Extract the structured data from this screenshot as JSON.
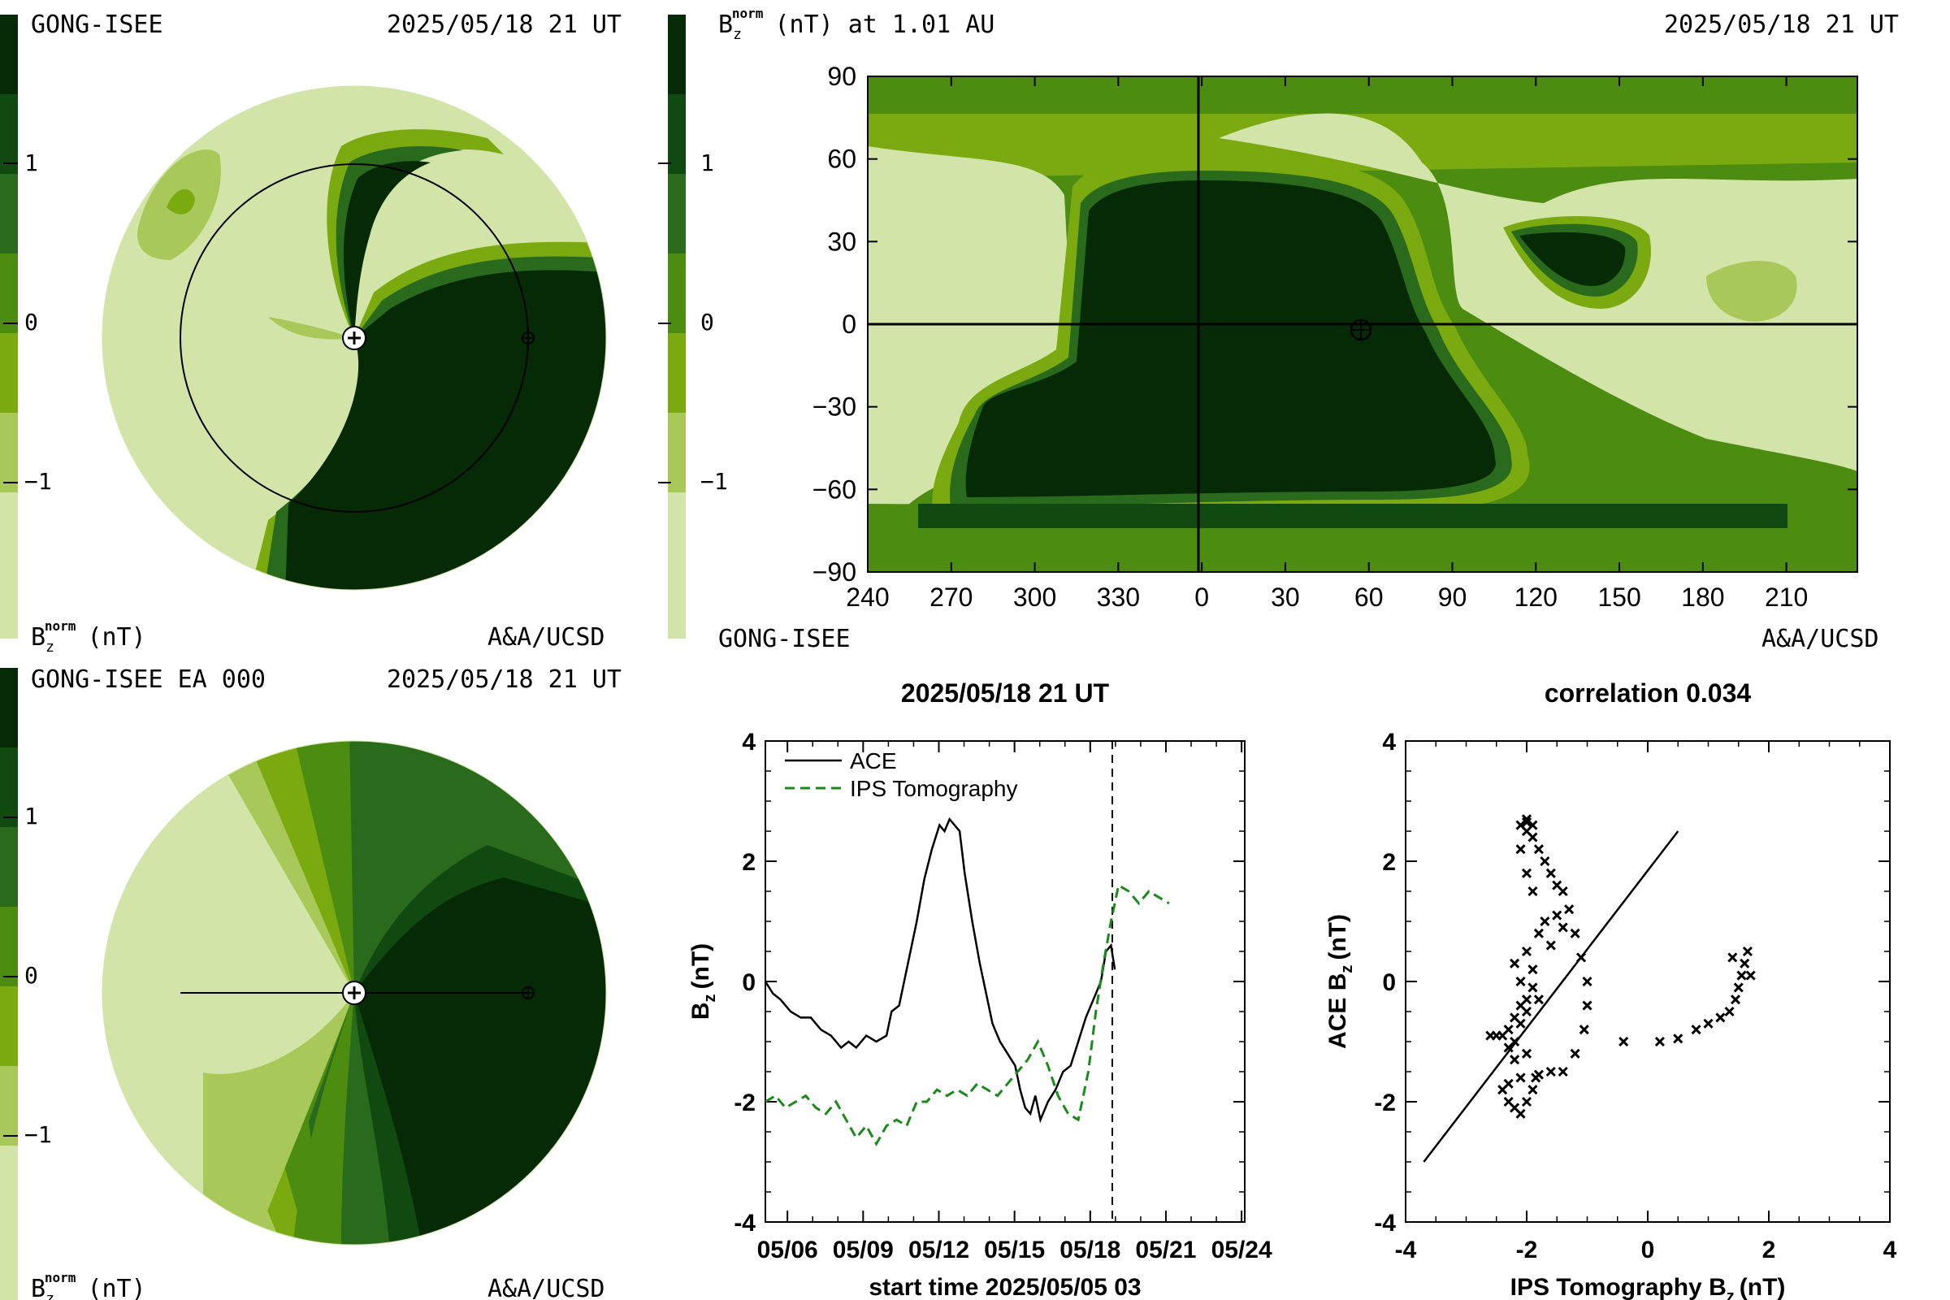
{
  "palette": {
    "levels": [
      "#d2e4a8",
      "#a8c85a",
      "#7aaa10",
      "#4c8c10",
      "#2a6a1c",
      "#114a10",
      "#062a06"
    ],
    "ace_color": "#000000",
    "ips_color": "#1a8a1a"
  },
  "panel_top_left": {
    "title_left": "GONG-ISEE",
    "title_right": "2025/05/18 21 UT",
    "colorbar_ticks": [
      "1",
      "0",
      "−1"
    ],
    "bottom_left_label": "B",
    "bottom_left_sub": "z",
    "bottom_left_sup": "norm",
    "bottom_left_unit": "(nT)",
    "bottom_right_label": "A&A/UCSD"
  },
  "panel_top_right": {
    "title_left": "B",
    "title_sub": "z",
    "title_sup": "norm",
    "title_rest": "(nT) at 1.01 AU",
    "title_right": "2025/05/18 21 UT",
    "colorbar_ticks": [
      "1",
      "0",
      "−1"
    ],
    "y_ticks": [
      "90",
      "60",
      "30",
      "0",
      "−30",
      "−60",
      "−90"
    ],
    "x_ticks": [
      "240",
      "270",
      "300",
      "330",
      "0",
      "30",
      "60",
      "90",
      "120",
      "150",
      "180",
      "210"
    ],
    "bottom_left_label": "GONG-ISEE",
    "bottom_right_label": "A&A/UCSD"
  },
  "panel_bottom_left": {
    "title_left": "GONG-ISEE EA 000",
    "title_right": "2025/05/18 21 UT",
    "colorbar_ticks": [
      "1",
      "0",
      "−1"
    ],
    "bottom_left_label": "B",
    "bottom_left_sub": "z",
    "bottom_left_sup": "norm",
    "bottom_left_unit": "(nT)",
    "bottom_right_label": "A&A/UCSD"
  },
  "chart_data": [
    {
      "type": "line",
      "title": "2025/05/18 21 UT",
      "xlabel": "start time 2025/05/05 03",
      "ylabel": "B",
      "ylabel_sub": "z",
      "ylabel_unit": "(nT)",
      "x_tick_labels": [
        "05/06",
        "05/09",
        "05/12",
        "05/15",
        "05/18",
        "05/21",
        "05/24"
      ],
      "x_tick_days": [
        0.875,
        3.875,
        6.875,
        9.875,
        12.875,
        15.875,
        18.875
      ],
      "xlim": [
        0,
        19
      ],
      "ylim": [
        -4,
        4
      ],
      "y_ticks": [
        "4",
        "2",
        "0",
        "-2",
        "-4"
      ],
      "current_time_day": 13.75,
      "series": [
        {
          "name": "ACE",
          "style": "solid",
          "x": [
            0,
            0.3,
            0.6,
            1.0,
            1.4,
            1.8,
            2.2,
            2.6,
            3.0,
            3.3,
            3.6,
            4.0,
            4.4,
            4.8,
            5.0,
            5.3,
            5.6,
            6.0,
            6.3,
            6.6,
            6.9,
            7.1,
            7.3,
            7.5,
            7.7,
            7.9,
            8.2,
            8.5,
            8.8,
            9.0,
            9.3,
            9.6,
            9.9,
            10.1,
            10.3,
            10.5,
            10.7,
            10.9,
            11.2,
            11.5,
            11.8,
            12.1,
            12.4,
            12.7,
            13.0,
            13.3,
            13.5,
            13.7,
            13.85
          ],
          "y": [
            0,
            -0.2,
            -0.3,
            -0.5,
            -0.6,
            -0.6,
            -0.8,
            -0.9,
            -1.1,
            -1.0,
            -1.1,
            -0.9,
            -1.0,
            -0.9,
            -0.5,
            -0.4,
            0.2,
            1.0,
            1.7,
            2.2,
            2.6,
            2.5,
            2.7,
            2.6,
            2.5,
            1.8,
            1.0,
            0.3,
            -0.3,
            -0.7,
            -1.0,
            -1.2,
            -1.4,
            -1.8,
            -2.1,
            -2.2,
            -1.9,
            -2.3,
            -2.0,
            -1.8,
            -1.5,
            -1.4,
            -1.0,
            -0.6,
            -0.3,
            0.0,
            0.5,
            0.6,
            0.2
          ]
        },
        {
          "name": "IPS Tomography",
          "style": "dashed",
          "x": [
            0,
            0.4,
            0.8,
            1.2,
            1.6,
            2.0,
            2.4,
            2.8,
            3.2,
            3.6,
            4.0,
            4.4,
            4.8,
            5.2,
            5.6,
            6.0,
            6.4,
            6.8,
            7.2,
            7.6,
            8.0,
            8.4,
            8.8,
            9.2,
            9.6,
            10.0,
            10.4,
            10.8,
            11.2,
            11.6,
            12.0,
            12.4,
            12.8,
            13.1,
            13.4,
            13.7,
            14.0,
            14.4,
            14.8,
            15.2,
            15.6,
            16.0
          ],
          "y": [
            -2.0,
            -1.9,
            -2.1,
            -2.0,
            -1.9,
            -2.1,
            -2.2,
            -2.0,
            -2.3,
            -2.6,
            -2.4,
            -2.7,
            -2.4,
            -2.3,
            -2.4,
            -2.0,
            -2.0,
            -1.8,
            -1.9,
            -1.8,
            -1.9,
            -1.7,
            -1.8,
            -1.9,
            -1.7,
            -1.5,
            -1.3,
            -1.0,
            -1.4,
            -1.9,
            -2.2,
            -2.3,
            -1.5,
            -0.5,
            0.3,
            1.0,
            1.6,
            1.5,
            1.3,
            1.5,
            1.4,
            1.3
          ]
        }
      ]
    },
    {
      "type": "scatter",
      "title": "correlation 0.034",
      "xlabel": "IPS Tomography B",
      "xlabel_sub": "z",
      "xlabel_unit": "(nT)",
      "ylabel": "ACE B",
      "ylabel_sub": "z",
      "ylabel_unit": "(nT)",
      "xlim": [
        -4,
        4
      ],
      "ylim": [
        -4,
        4
      ],
      "x_ticks": [
        "-4",
        "-2",
        "0",
        "2",
        "4"
      ],
      "y_ticks": [
        "4",
        "2",
        "0",
        "-2",
        "-4"
      ],
      "fit_line": {
        "x": [
          -3.7,
          0.5
        ],
        "y": [
          -3.0,
          2.5
        ]
      },
      "points": [
        [
          -2.0,
          2.7
        ],
        [
          -1.9,
          2.6
        ],
        [
          -2.0,
          2.5
        ],
        [
          -1.9,
          2.4
        ],
        [
          -1.8,
          2.2
        ],
        [
          -1.7,
          2.0
        ],
        [
          -1.6,
          1.8
        ],
        [
          -1.5,
          1.6
        ],
        [
          -1.4,
          1.5
        ],
        [
          -1.3,
          1.2
        ],
        [
          -1.2,
          0.8
        ],
        [
          -1.1,
          0.4
        ],
        [
          -1.0,
          0.0
        ],
        [
          -1.0,
          -0.4
        ],
        [
          -1.05,
          -0.8
        ],
        [
          -1.2,
          -1.2
        ],
        [
          -1.4,
          -1.5
        ],
        [
          -1.6,
          -1.5
        ],
        [
          -1.8,
          -1.55
        ],
        [
          -2.1,
          -1.6
        ],
        [
          -2.3,
          -1.7
        ],
        [
          -2.4,
          -1.8
        ],
        [
          -2.3,
          -2.0
        ],
        [
          -2.2,
          -2.1
        ],
        [
          -2.1,
          -2.2
        ],
        [
          -2.0,
          -2.0
        ],
        [
          -1.9,
          -1.8
        ],
        [
          -1.85,
          -1.6
        ],
        [
          -2.0,
          -1.2
        ],
        [
          -2.2,
          -1.0
        ],
        [
          -2.4,
          -0.9
        ],
        [
          -2.5,
          -0.9
        ],
        [
          -2.6,
          -0.9
        ],
        [
          -2.3,
          -0.8
        ],
        [
          -2.2,
          -0.6
        ],
        [
          -2.1,
          -0.4
        ],
        [
          -2.0,
          -0.3
        ],
        [
          -1.9,
          -0.1
        ],
        [
          -1.9,
          0.2
        ],
        [
          -2.0,
          0.5
        ],
        [
          -1.8,
          0.8
        ],
        [
          -1.7,
          1.0
        ],
        [
          -1.9,
          1.5
        ],
        [
          -2.0,
          1.8
        ],
        [
          -2.1,
          2.2
        ],
        [
          -2.1,
          2.6
        ],
        [
          -2.0,
          2.65
        ],
        [
          -2.2,
          -1.3
        ],
        [
          -2.3,
          -1.1
        ],
        [
          -2.1,
          -0.7
        ],
        [
          -2.0,
          -0.5
        ],
        [
          -1.8,
          -0.3
        ],
        [
          -2.1,
          0.0
        ],
        [
          -2.2,
          0.3
        ],
        [
          -1.6,
          0.6
        ],
        [
          -1.4,
          0.9
        ],
        [
          -1.5,
          1.1
        ],
        [
          -0.4,
          -1.0
        ],
        [
          0.2,
          -1.0
        ],
        [
          0.5,
          -0.95
        ],
        [
          0.8,
          -0.8
        ],
        [
          1.0,
          -0.7
        ],
        [
          1.2,
          -0.6
        ],
        [
          1.35,
          -0.5
        ],
        [
          1.45,
          -0.3
        ],
        [
          1.5,
          -0.1
        ],
        [
          1.55,
          0.1
        ],
        [
          1.6,
          0.3
        ],
        [
          1.65,
          0.5
        ],
        [
          1.4,
          0.4
        ],
        [
          1.7,
          0.1
        ]
      ]
    }
  ]
}
